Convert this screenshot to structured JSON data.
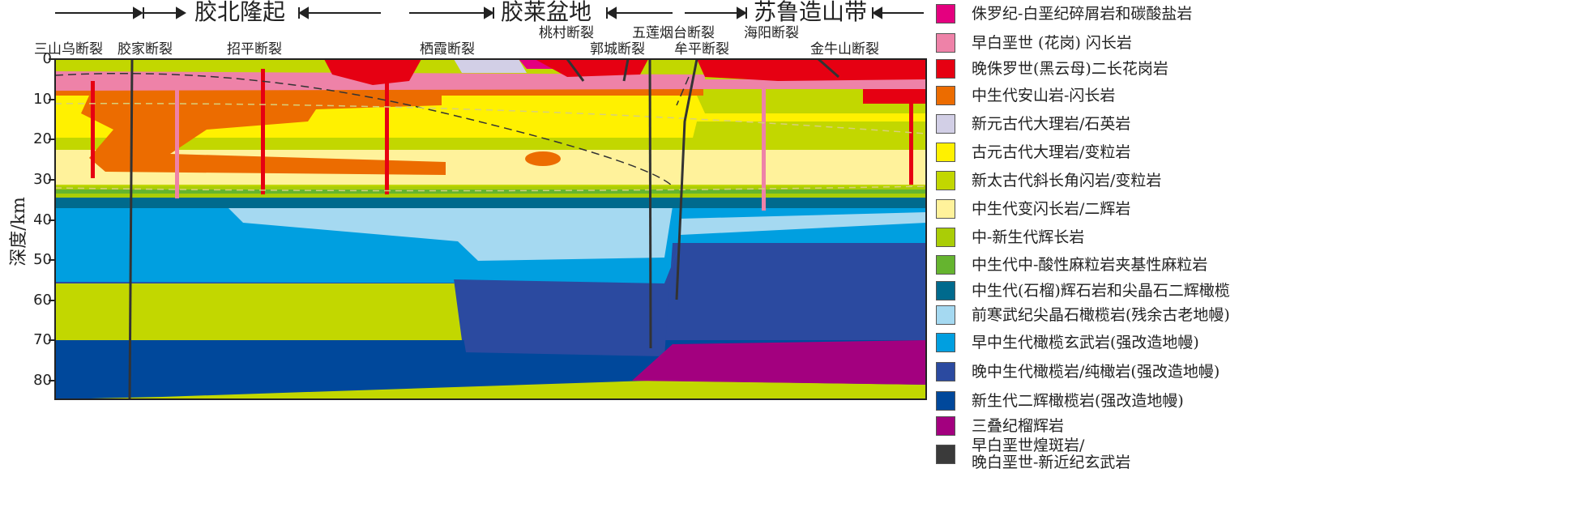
{
  "regions": [
    "胶北隆起",
    "胶莱盆地",
    "苏鲁造山带"
  ],
  "faults": [
    "三山乌断裂",
    "胶家断裂",
    "招平断裂",
    "栖霞断裂",
    "桃村断裂",
    "五莲烟台断裂",
    "郭城断裂",
    "牟平断裂",
    "海阳断裂",
    "金牛山断裂"
  ],
  "axis": {
    "label": "深度/km",
    "ticks": [
      "0",
      "10",
      "20",
      "30",
      "40",
      "50",
      "60",
      "70",
      "80"
    ]
  },
  "legend": [
    {
      "label": "侏罗纪-白垩纪碎屑岩和碳酸盐岩",
      "color": "#e4007f"
    },
    {
      "label": "早白垩世 (花岗) 闪长岩",
      "color": "#ee82a8"
    },
    {
      "label": "晚侏罗世(黑云母)二长花岗岩",
      "color": "#e60012"
    },
    {
      "label": "中生代安山岩-闪长岩",
      "color": "#ec6c00"
    },
    {
      "label": "新元古代大理岩/石英岩",
      "color": "#d2cfe6"
    },
    {
      "label": "古元古代大理岩/变粒岩",
      "color": "#fff100"
    },
    {
      "label": "新太古代斜长角闪岩/变粒岩",
      "color": "#c2d700"
    },
    {
      "label": "中生代变闪长岩/二辉岩",
      "color": "#fff29b"
    },
    {
      "label": "中-新生代辉长岩",
      "color": "#aacd06"
    },
    {
      "label": "中生代中-酸性麻粒岩夹基性麻粒岩",
      "color": "#65b42f"
    },
    {
      "label": "中生代(石榴)辉石岩和尖晶石二辉橄榄",
      "color": "#006a8d"
    },
    {
      "label": "前寒武纪尖晶石橄榄岩(残余古老地幔)",
      "color": "#a5d9f1"
    },
    {
      "label": "早中生代橄榄玄武岩(强改造地幔)",
      "color": "#009fe0"
    },
    {
      "label": "晚中生代橄榄岩/纯橄岩(强改造地幔)",
      "color": "#2b4aa0"
    },
    {
      "label": "新生代二辉橄榄岩(强改造地幔)",
      "color": "#00489b"
    },
    {
      "label": "三叠纪榴辉岩",
      "color": "#a3007f"
    },
    {
      "label": "早白垩世煌斑岩/\n晚白垩世-新近纪玄武岩",
      "color": "#3a3a3a"
    }
  ]
}
